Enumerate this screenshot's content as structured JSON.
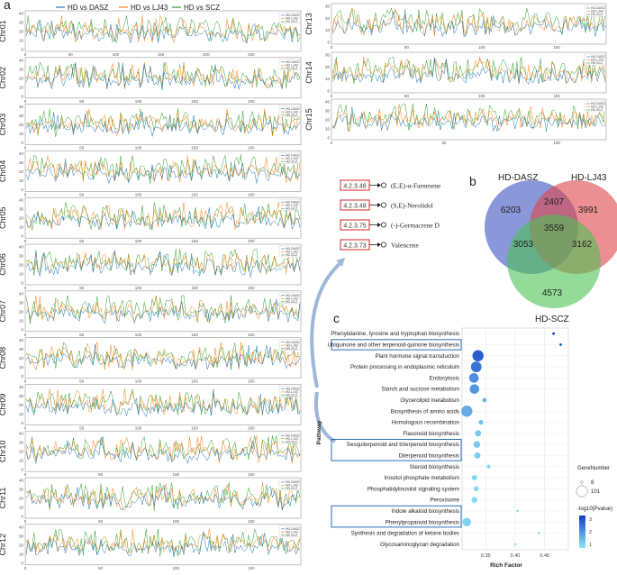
{
  "panel_a": {
    "letter": "a",
    "legend": [
      {
        "label": "HD vs DASZ",
        "color": "#1f77b4"
      },
      {
        "label": "HD vs LJ43",
        "color": "#ff7f0e"
      },
      {
        "label": "HD vs SCZ",
        "color": "#2ca02c"
      }
    ],
    "mini_legend": [
      "HD-DASZ",
      "HD-LJ43",
      "HD-SCZ"
    ],
    "chromosomes": [
      {
        "name": "Chr01",
        "yticks": [
          "40",
          "30",
          "20",
          "10",
          "0"
        ],
        "xticks": [
          "0",
          "50",
          "100",
          "150",
          "200",
          "250"
        ]
      },
      {
        "name": "Chr02",
        "yticks": [
          "40",
          "30",
          "20",
          "10",
          "0"
        ],
        "xticks": [
          "0",
          "50",
          "100",
          "150",
          "200"
        ]
      },
      {
        "name": "Chr03",
        "yticks": [
          "40",
          "30",
          "20",
          "10",
          "0"
        ],
        "xticks": [
          "0",
          "50",
          "100",
          "150",
          "200"
        ]
      },
      {
        "name": "Chr04",
        "yticks": [
          "40",
          "30",
          "20",
          "10",
          "0"
        ],
        "xticks": [
          "0",
          "50",
          "100",
          "150",
          "200"
        ]
      },
      {
        "name": "Chr05",
        "yticks": [
          "40",
          "30",
          "20",
          "10",
          "0"
        ],
        "xticks": [
          "0",
          "50",
          "100",
          "150",
          "200"
        ]
      },
      {
        "name": "Chr06",
        "yticks": [
          "40",
          "30",
          "20",
          "10",
          "0"
        ],
        "xticks": [
          "0",
          "50",
          "100",
          "150",
          "200"
        ]
      },
      {
        "name": "Chr07",
        "yticks": [
          "40",
          "30",
          "20",
          "10",
          "0"
        ],
        "xticks": [
          "0",
          "50",
          "100",
          "150",
          "200"
        ]
      },
      {
        "name": "Chr08",
        "yticks": [
          "40",
          "30",
          "20",
          "10",
          "0"
        ],
        "xticks": [
          "0",
          "50",
          "100",
          "150",
          "200"
        ]
      },
      {
        "name": "Chr09",
        "yticks": [
          "40",
          "30",
          "20",
          "10",
          "0"
        ],
        "xticks": [
          "0",
          "50",
          "100",
          "150",
          "200"
        ]
      },
      {
        "name": "Chr10",
        "yticks": [
          "40",
          "30",
          "20",
          "10",
          "0"
        ],
        "xticks": [
          "0",
          "50",
          "100",
          "150"
        ]
      },
      {
        "name": "Chr11",
        "yticks": [
          "40",
          "30",
          "20",
          "10",
          "0"
        ],
        "xticks": [
          "0",
          "50",
          "100",
          "150"
        ]
      },
      {
        "name": "Chr12",
        "yticks": [
          "40",
          "30",
          "20",
          "10",
          "0"
        ],
        "xticks": [
          "0",
          "50",
          "100",
          "150"
        ]
      },
      {
        "name": "Chr13",
        "yticks": [
          "30",
          "20",
          "10",
          "0"
        ],
        "xticks": [
          "0",
          "50",
          "100",
          "150"
        ]
      },
      {
        "name": "Chr14",
        "yticks": [
          "30",
          "20",
          "10",
          "0"
        ],
        "xticks": [
          "0",
          "50",
          "100",
          "150"
        ]
      },
      {
        "name": "Chr15",
        "yticks": [
          "40",
          "30",
          "20",
          "10",
          "0"
        ],
        "xticks": [
          "0",
          "50",
          "100"
        ]
      }
    ]
  },
  "panel_b": {
    "letter": "b",
    "sets": [
      {
        "label": "HD-DASZ",
        "color": "#4b5fc4"
      },
      {
        "label": "HD-LJ43",
        "color": "#e0454a"
      },
      {
        "label": "HD-SCZ",
        "color": "#4cc253"
      }
    ],
    "regions": {
      "only_dasz": "6203",
      "only_lj43": "3991",
      "only_scz": "4573",
      "dasz_lj43": "2407",
      "dasz_scz": "3053",
      "lj43_scz": "3162",
      "all": "3559"
    }
  },
  "enzymes": [
    {
      "ec": "4.2.3.46",
      "product": "(E,E)-α-Farnesene"
    },
    {
      "ec": "4.2.3.48",
      "product": "(S,E)-Nerolidol"
    },
    {
      "ec": "4.2.3.75",
      "product": "(-)-Germacrene D"
    },
    {
      "ec": "4.2.3.73",
      "product": "Valencene"
    }
  ],
  "panel_c": {
    "letter": "c"
  },
  "chart_data": {
    "type": "scatter",
    "xlabel": "Rich Factor",
    "ylabel": "Pathway",
    "xticks": [
      "0.35",
      "0.40",
      "0.45"
    ],
    "xlim": [
      0.31,
      0.49
    ],
    "categories": [
      "Phenylalanine, tyrosine and tryptophan biosynthesis",
      "Ubiquinone and other terpenoid-quinone biosynthesis",
      "Plant hormone signal transduction",
      "Protein processing in endoplasmic reticulum",
      "Endocytosis",
      "Starch and sucrose metabolism",
      "Glycerolipid metabolism",
      "Biosynthesis of amino acids",
      "Homologous recombination",
      "Flavonoid biosynthesis",
      "Sesquiterpenoid and triterpenoid biosynthesis",
      "Diterpenoid biosynthesis",
      "Steroid biosynthesis",
      "Inositol phosphate metabolism",
      "Phosphatidylinositol signaling system",
      "Peroxisome",
      "Indole alkaloid biosynthesis",
      "Phenylpropanoid biosynthesis",
      "Synthesis and degradation of ketone bodies",
      "Glycosaminoglycan degradation"
    ],
    "points": [
      {
        "x": 0.465,
        "size": 8,
        "neglog10p": 3.3
      },
      {
        "x": 0.477,
        "size": 8,
        "neglog10p": 3.0
      },
      {
        "x": 0.337,
        "size": 101,
        "neglog10p": 2.9
      },
      {
        "x": 0.334,
        "size": 90,
        "neglog10p": 2.6
      },
      {
        "x": 0.33,
        "size": 70,
        "neglog10p": 2.2
      },
      {
        "x": 0.331,
        "size": 70,
        "neglog10p": 2.1
      },
      {
        "x": 0.348,
        "size": 12,
        "neglog10p": 1.7
      },
      {
        "x": 0.318,
        "size": 101,
        "neglog10p": 1.8
      },
      {
        "x": 0.342,
        "size": 14,
        "neglog10p": 1.5
      },
      {
        "x": 0.337,
        "size": 25,
        "neglog10p": 1.4
      },
      {
        "x": 0.335,
        "size": 30,
        "neglog10p": 1.4
      },
      {
        "x": 0.336,
        "size": 25,
        "neglog10p": 1.3
      },
      {
        "x": 0.355,
        "size": 10,
        "neglog10p": 1.2
      },
      {
        "x": 0.331,
        "size": 18,
        "neglog10p": 1.2
      },
      {
        "x": 0.334,
        "size": 16,
        "neglog10p": 1.2
      },
      {
        "x": 0.331,
        "size": 22,
        "neglog10p": 1.2
      },
      {
        "x": 0.404,
        "size": 8,
        "neglog10p": 1.1
      },
      {
        "x": 0.318,
        "size": 55,
        "neglog10p": 1.3
      },
      {
        "x": 0.44,
        "size": 8,
        "neglog10p": 1.0
      },
      {
        "x": 0.4,
        "size": 8,
        "neglog10p": 1.0
      }
    ],
    "highlighted": [
      "Ubiquinone and other terpenoid-quinone biosynthesis",
      "Sesquiterpenoid and triterpenoid biosynthesis",
      "Diterpenoid biosynthesis",
      "Indole alkaloid biosynthesis",
      "Phenylpropanoid biosynthesis"
    ],
    "legend_size": {
      "title": "GeneNumber",
      "values": [
        "8",
        "101"
      ]
    },
    "legend_color": {
      "title": "-log10(Pvalue)",
      "ticks": [
        "3",
        "2",
        "1"
      ],
      "low": "#8fe6f7",
      "high": "#1240c9"
    }
  }
}
